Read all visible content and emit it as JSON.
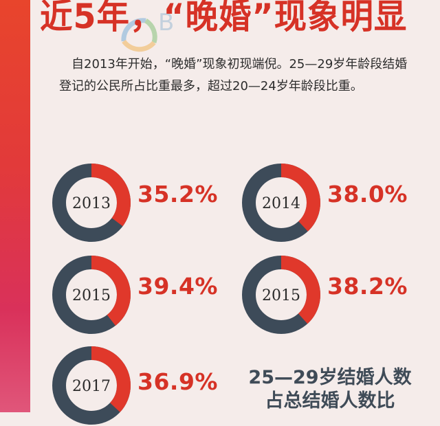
{
  "title": "近5年，“晚婚”现象明显",
  "intro": "自2013年开始，“晚婚”现象初现端倪。25—29岁年龄段结婚登记的公民所占比重最多，超过20—24岁年龄段比重。",
  "watermark_text": "B",
  "colors": {
    "accent": "#d63226",
    "dark": "#3f4b57",
    "ring_dark": "#3d4b59",
    "ring_red": "#e0382b",
    "background": "#f5ecea"
  },
  "chart_data": {
    "type": "pie",
    "title": "25—29岁结婚人数占总结婚人数比",
    "items": [
      {
        "year": "2013",
        "value": 35.2,
        "label": "35.2%"
      },
      {
        "year": "2014",
        "value": 38.0,
        "label": "38.0%"
      },
      {
        "year": "2015",
        "value": 39.4,
        "label": "39.4%"
      },
      {
        "year": "2015",
        "value": 38.2,
        "label": "38.2%"
      },
      {
        "year": "2017",
        "value": 36.9,
        "label": "36.9%"
      }
    ]
  },
  "caption": {
    "line1": "25—29岁结婚人数",
    "line2": "占总结婚人数比"
  }
}
